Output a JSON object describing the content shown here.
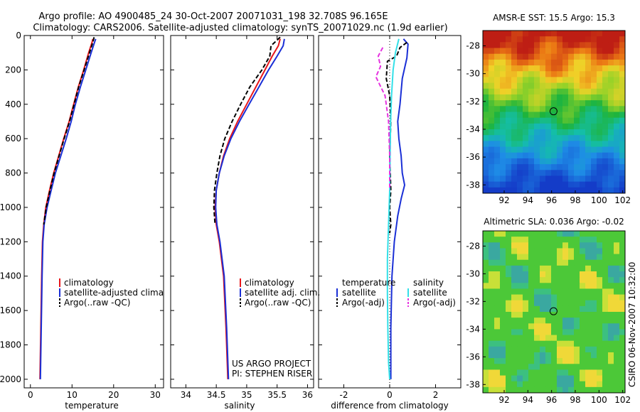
{
  "header": {
    "line1": "Argo profile: AO 4900485_24 30-Oct-2007 20071031_198 32.708S 96.165E",
    "line2": "Climatology: CARS2006. Satellite-adjusted climatology: synTS_20071029.nc (1.9d earlier)"
  },
  "colors": {
    "climatology": "#e8161b",
    "satellite": "#1a2fd6",
    "argo": "#000000",
    "satellite_salinity_diff": "#33e0e8",
    "argo_salinity_diff": "#e633e0"
  },
  "side_credit": "CSIRO 06-Nov-2007 10:32:00",
  "chart_data": [
    {
      "type": "line",
      "id": "temperature",
      "xlabel": "temperature",
      "ylabel": "",
      "xlim": [
        -1.5,
        32
      ],
      "ylim": [
        2050,
        0
      ],
      "xticks": [
        0,
        10,
        20,
        30
      ],
      "yticks": [
        0,
        200,
        400,
        600,
        800,
        1000,
        1200,
        1400,
        1600,
        1800,
        2000
      ],
      "legend": [
        "climatology",
        "satellite-adjusted climatology",
        "Argo(..raw -QC)"
      ],
      "series": [
        {
          "name": "climatology",
          "style": "solid",
          "x": [
            15.0,
            14.8,
            14.0,
            12.8,
            11.5,
            10.4,
            9.3,
            8.0,
            6.8,
            5.6,
            4.6,
            3.7,
            3.2,
            2.9,
            2.7,
            2.5,
            2.3
          ],
          "y": [
            20,
            40,
            100,
            200,
            300,
            400,
            500,
            600,
            700,
            800,
            900,
            1000,
            1100,
            1200,
            1400,
            1700,
            2000
          ]
        },
        {
          "name": "satellite-adjusted climatology",
          "style": "solid",
          "x": [
            15.7,
            15.4,
            14.6,
            13.3,
            12.0,
            10.8,
            9.8,
            8.6,
            7.3,
            6.0,
            5.0,
            4.0,
            3.3,
            3.0,
            2.8,
            2.6,
            2.4
          ],
          "y": [
            20,
            40,
            100,
            200,
            300,
            400,
            500,
            600,
            700,
            800,
            900,
            1000,
            1100,
            1200,
            1400,
            1700,
            2000
          ]
        },
        {
          "name": "Argo(..raw -QC)",
          "style": "dashed",
          "x": [
            15.3,
            15.0,
            14.2,
            12.9,
            11.6,
            10.5,
            9.4,
            8.1,
            6.9,
            5.7,
            4.7,
            3.8,
            3.2
          ],
          "y": [
            10,
            40,
            100,
            200,
            300,
            400,
            500,
            600,
            700,
            800,
            900,
            1000,
            1100
          ]
        }
      ]
    },
    {
      "type": "line",
      "id": "salinity",
      "xlabel": "salinity",
      "ylabel": "",
      "xlim": [
        33.75,
        36.1
      ],
      "ylim": [
        2050,
        0
      ],
      "xticks": [
        34,
        34.5,
        35,
        35.5,
        36
      ],
      "xticklabels": [
        "34",
        "34.5",
        "35",
        "35.5",
        "36"
      ],
      "legend": [
        "climatology",
        "satellite adj. clim.",
        "Argo(..raw -QC)"
      ],
      "annotation": [
        "US ARGO PROJECT",
        "PI: STEPHEN RISER"
      ],
      "series": [
        {
          "name": "climatology",
          "style": "solid",
          "x": [
            35.55,
            35.52,
            35.42,
            35.3,
            35.15,
            35.0,
            34.85,
            34.72,
            34.62,
            34.55,
            34.5,
            34.48,
            34.5,
            34.55,
            34.62,
            34.66,
            34.69
          ],
          "y": [
            20,
            60,
            120,
            200,
            300,
            400,
            500,
            600,
            700,
            800,
            900,
            1000,
            1100,
            1200,
            1400,
            1700,
            2000
          ]
        },
        {
          "name": "satellite adj. clim.",
          "style": "solid",
          "x": [
            35.62,
            35.6,
            35.5,
            35.36,
            35.2,
            35.04,
            34.88,
            34.74,
            34.63,
            34.55,
            34.5,
            34.49,
            34.51,
            34.56,
            34.63,
            34.67,
            34.7
          ],
          "y": [
            20,
            60,
            120,
            200,
            300,
            400,
            500,
            600,
            700,
            800,
            900,
            1000,
            1100,
            1200,
            1400,
            1700,
            2000
          ]
        },
        {
          "name": "Argo(..raw -QC)",
          "style": "dashed",
          "x": [
            35.55,
            35.4,
            35.38,
            35.25,
            35.05,
            34.9,
            34.76,
            34.64,
            34.56,
            34.51,
            34.47,
            34.46,
            34.48
          ],
          "y": [
            10,
            60,
            120,
            200,
            300,
            400,
            500,
            600,
            700,
            800,
            900,
            1000,
            1100
          ]
        }
      ]
    },
    {
      "type": "line",
      "id": "difference",
      "xlabel": "difference from climatology",
      "ylabel": "",
      "xlim": [
        -3.1,
        3.1
      ],
      "ylim": [
        2050,
        0
      ],
      "xticks": [
        -2,
        0,
        2
      ],
      "legend_headers": [
        "temperature",
        "salinity"
      ],
      "legend": [
        "satellite",
        "Argo(-adj)",
        "satellite",
        "Argo(-adj)"
      ],
      "series": [
        {
          "name": "temperature satellite",
          "style": "solid",
          "x": [
            0.6,
            0.8,
            0.75,
            0.55,
            0.45,
            0.35,
            0.4,
            0.5,
            0.55,
            0.65,
            0.5,
            0.35,
            0.2,
            0.1,
            0.05,
            0.05
          ],
          "y": [
            20,
            50,
            130,
            250,
            400,
            500,
            600,
            700,
            800,
            870,
            950,
            1050,
            1200,
            1400,
            1700,
            2000
          ]
        },
        {
          "name": "temperature Argo(-adj)",
          "style": "dashed",
          "x": [
            0.75,
            0.45,
            0.3,
            -0.1,
            -0.15,
            0.0,
            0.05,
            0.0,
            0.05,
            0.0,
            0.05,
            0.0
          ],
          "y": [
            40,
            70,
            120,
            150,
            250,
            350,
            500,
            700,
            900,
            1000,
            1100,
            1150
          ]
        },
        {
          "name": "salinity satellite",
          "style": "solid",
          "x": [
            0.4,
            0.25,
            0.15,
            0.08,
            0.04,
            0.02,
            0.0,
            -0.05,
            -0.1,
            -0.1,
            -0.08,
            -0.05,
            0.0
          ],
          "y": [
            20,
            100,
            200,
            350,
            500,
            700,
            900,
            1100,
            1300,
            1500,
            1700,
            1900,
            2000
          ]
        },
        {
          "name": "salinity Argo(-adj)",
          "style": "dashed",
          "x": [
            -0.3,
            -0.5,
            -0.4,
            -0.6,
            -0.2,
            -0.05,
            0.0,
            0.0
          ],
          "y": [
            70,
            120,
            180,
            240,
            350,
            500,
            700,
            900
          ]
        }
      ]
    },
    {
      "type": "heatmap",
      "id": "amsre_sst",
      "title": "AMSR-E SST: 15.5 Argo: 15.3",
      "xlim": [
        90.2,
        102.2
      ],
      "ylim": [
        -38.6,
        -26.9
      ],
      "xticks": [
        92,
        94,
        96,
        98,
        100,
        102
      ],
      "yticks": [
        -28,
        -30,
        -32,
        -34,
        -36,
        -38
      ],
      "marker": {
        "lon": 96.165,
        "lat": -32.708
      }
    },
    {
      "type": "heatmap",
      "id": "altimetric_sla",
      "title": "Altimetric SLA: 0.036 Argo: -0.02",
      "xlim": [
        90.2,
        102.2
      ],
      "ylim": [
        -38.6,
        -26.9
      ],
      "xticks": [
        92,
        94,
        96,
        98,
        100,
        102
      ],
      "yticks": [
        -28,
        -30,
        -32,
        -34,
        -36,
        -38
      ],
      "marker": {
        "lon": 96.165,
        "lat": -32.708
      }
    }
  ]
}
